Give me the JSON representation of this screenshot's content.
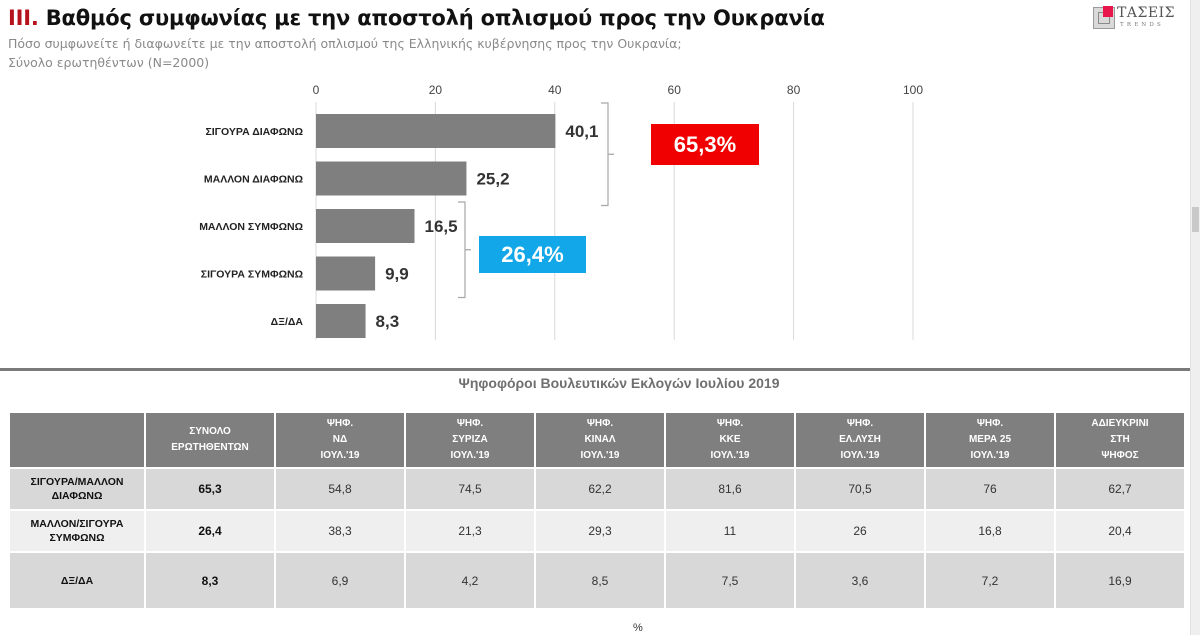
{
  "header": {
    "title_number": "III.",
    "title_text": "Βαθμός συμφωνίας με την αποστολή οπλισμού προς την Ουκρανία",
    "question": "Πόσο συμφωνείτε ή διαφωνείτε με την αποστολή οπλισμού της Ελληνικής κυβέρνησης προς την Ουκρανία;",
    "base": "Σύνολο ερωτηθέντων (Ν=2000)"
  },
  "logo": {
    "name": "ΤΑΣΕΙΣ",
    "tagline": "TRENDS",
    "accent_color": "#e8174b"
  },
  "chart_data": {
    "type": "bar",
    "orientation": "horizontal",
    "categories": [
      "ΣΙΓΟΥΡΑ ΔΙΑΦΩΝΩ",
      "ΜΑΛΛΟΝ ΔΙΑΦΩΝΩ",
      "ΜΑΛΛΟΝ ΣΥΜΦΩΝΩ",
      "ΣΙΓΟΥΡΑ ΣΥΜΦΩΝΩ",
      "ΔΞ/ΔΑ"
    ],
    "values": [
      40.1,
      25.2,
      16.5,
      9.9,
      8.3
    ],
    "value_labels": [
      "40,1",
      "25,2",
      "16,5",
      "9,9",
      "8,3"
    ],
    "xlim": [
      0,
      100
    ],
    "xticks": [
      0,
      20,
      40,
      60,
      80,
      100
    ],
    "xtick_labels": [
      "0",
      "20",
      "40",
      "60",
      "80",
      "100"
    ],
    "grid": true,
    "bar_color": "#7f7f7f",
    "annotations": [
      {
        "label": "65,3%",
        "groups": [
          "ΣΙΓΟΥΡΑ ΔΙΑΦΩΝΩ",
          "ΜΑΛΛΟΝ ΔΙΑΦΩΝΩ"
        ],
        "color": "#f00000"
      },
      {
        "label": "26,4%",
        "groups": [
          "ΜΑΛΛΟΝ ΣΥΜΦΩΝΩ",
          "ΣΙΓΟΥΡΑ ΣΥΜΦΩΝΩ"
        ],
        "color": "#12a7e8"
      }
    ]
  },
  "table": {
    "title": "Ψηφοφόροι Βουλευτικών Εκλογών Ιουλίου 2019",
    "columns": [
      "",
      "ΣΥΝΟΛΟ\nΕΡΩΤΗΘΕΝΤΩΝ",
      "ΨΗΦ.\nΝΔ\nΙΟΥΛ.'19",
      "ΨΗΦ.\nΣΥΡΙΖΑ\nΙΟΥΛ.'19",
      "ΨΗΦ.\nΚΙΝΑΛ\nΙΟΥΛ.'19",
      "ΨΗΦ.\nΚΚΕ\nΙΟΥΛ.'19",
      "ΨΗΦ.\nΕΛ.ΛΥΣΗ\nΙΟΥΛ.'19",
      "ΨΗΦ.\nΜΕΡΑ 25\nΙΟΥΛ.'19",
      "ΑΔΙΕΥΚΡΙΝΙ\nΣΤΗ\nΨΗΦΟΣ"
    ],
    "rows": [
      {
        "label": "ΣΙΓΟΥΡΑ/ΜΑΛΛΟΝ\nΔΙΑΦΩΝΩ",
        "values": [
          "65,3",
          "54,8",
          "74,5",
          "62,2",
          "81,6",
          "70,5",
          "76",
          "62,7"
        ]
      },
      {
        "label": "ΜΑΛΛΟΝ/ΣΙΓΟΥΡΑ\nΣΥΜΦΩΝΩ",
        "values": [
          "26,4",
          "38,3",
          "21,3",
          "29,3",
          "11",
          "26",
          "16,8",
          "20,4"
        ]
      },
      {
        "label": "ΔΞ/ΔΑ",
        "values": [
          "8,3",
          "6,9",
          "4,2",
          "8,5",
          "7,5",
          "3,6",
          "7,2",
          "16,9"
        ]
      }
    ],
    "unit": "%"
  }
}
